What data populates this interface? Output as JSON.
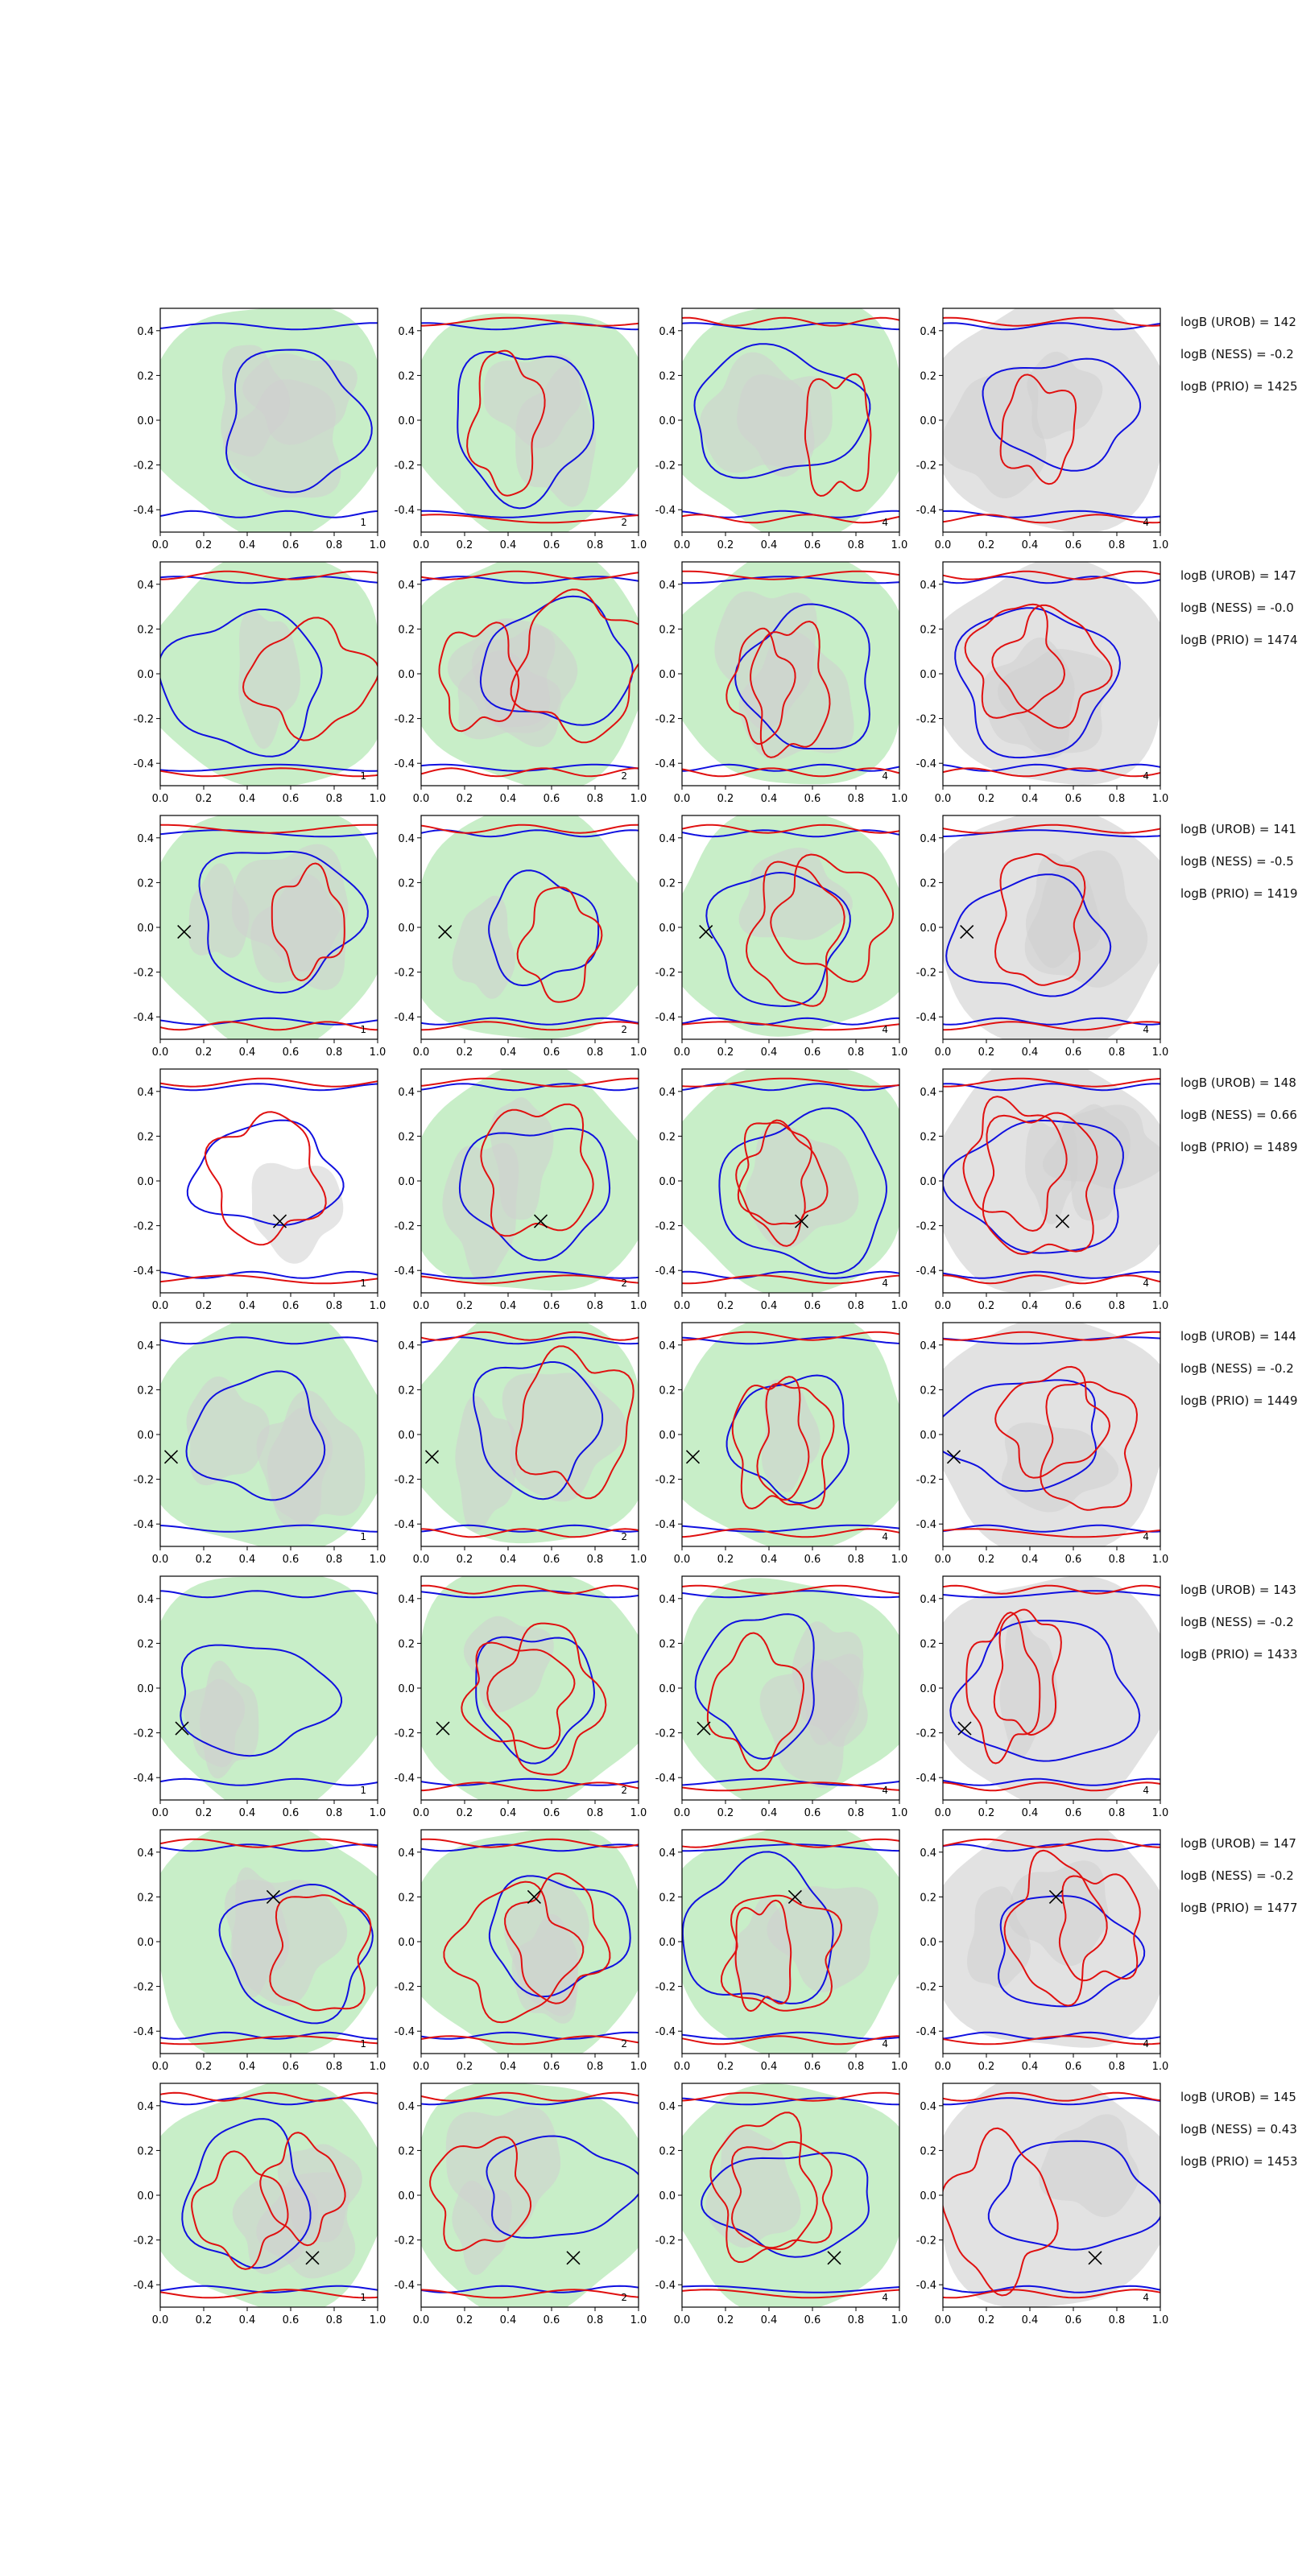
{
  "chart_data": {
    "type": "contour-grid",
    "rows": 8,
    "cols": 4,
    "x_range": [
      0.0,
      1.0
    ],
    "y_range": [
      -0.5,
      0.5
    ],
    "x_ticks": [
      "0.0",
      "0.2",
      "0.4",
      "0.6",
      "0.8",
      "1.0"
    ],
    "y_ticks": [
      "0.4",
      "0.2",
      "0.0",
      "-0.2",
      "-0.4"
    ],
    "panel_labels": [
      "1",
      "2",
      "4",
      "4"
    ],
    "colors": {
      "red_contour": "#e01010",
      "blue_contour": "#1010e0",
      "green_fill": "#c8eec8",
      "gray_fill": "#e2e2e2",
      "gray_inner": "#cfcfcf",
      "axis": "#000000"
    },
    "annotations": [
      {
        "urob": "logB (UROB) = 142",
        "ness": "logB (NESS) = -0.2",
        "prio": "logB (PRIO) = 1425"
      },
      {
        "urob": "logB (UROB) = 147",
        "ness": "logB (NESS) = -0.0",
        "prio": "logB (PRIO) = 1474"
      },
      {
        "urob": "logB (UROB) = 141",
        "ness": "logB (NESS) = -0.5",
        "prio": "logB (PRIO) = 1419"
      },
      {
        "urob": "logB (UROB) = 148",
        "ness": "logB (NESS) = 0.66",
        "prio": "logB (PRIO) = 1489"
      },
      {
        "urob": "logB (UROB) = 144",
        "ness": "logB (NESS) = -0.2",
        "prio": "logB (PRIO) = 1449"
      },
      {
        "urob": "logB (UROB) = 143",
        "ness": "logB (NESS) = -0.2",
        "prio": "logB (PRIO) = 1433"
      },
      {
        "urob": "logB (UROB) = 147",
        "ness": "logB (NESS) = -0.2",
        "prio": "logB (PRIO) = 1477"
      },
      {
        "urob": "logB (UROB) = 145",
        "ness": "logB (NESS) = 0.43",
        "prio": "logB (PRIO) = 1453"
      }
    ],
    "markers": [
      null,
      null,
      {
        "x": 0.11,
        "y": -0.02
      },
      {
        "x": 0.55,
        "y": -0.18
      },
      {
        "x": 0.05,
        "y": -0.1
      },
      {
        "x": 0.1,
        "y": -0.18
      },
      {
        "x": 0.52,
        "y": 0.2
      },
      {
        "x": 0.7,
        "y": -0.28
      }
    ]
  }
}
